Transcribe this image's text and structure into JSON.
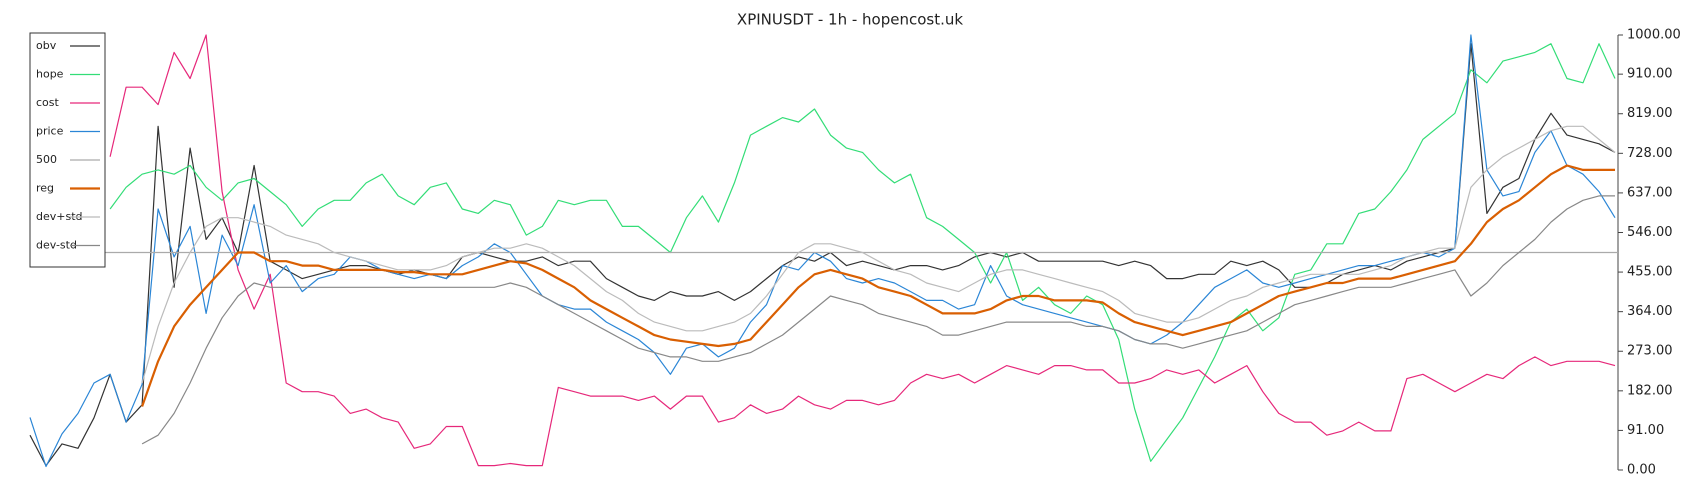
{
  "chart_data": {
    "type": "line",
    "title": "XPINUSDT - 1h - hopencost.uk",
    "ylim": [
      0,
      1000
    ],
    "yticks": [
      {
        "value": 0,
        "label": "0.00"
      },
      {
        "value": 91,
        "label": "91.00"
      },
      {
        "value": 182,
        "label": "182.00"
      },
      {
        "value": 273,
        "label": "273.00"
      },
      {
        "value": 364,
        "label": "364.00"
      },
      {
        "value": 455,
        "label": "455.00"
      },
      {
        "value": 546,
        "label": "546.00"
      },
      {
        "value": 637,
        "label": "637.00"
      },
      {
        "value": 728,
        "label": "728.00"
      },
      {
        "value": 819,
        "label": "819.00"
      },
      {
        "value": 910,
        "label": "910.00"
      },
      {
        "value": 1000,
        "label": "1000.00"
      }
    ],
    "grid": false,
    "legend": "upper left",
    "series": [
      {
        "name": "obv",
        "color": "#333333",
        "values": [
          80,
          10,
          60,
          50,
          120,
          220,
          110,
          150,
          790,
          420,
          740,
          530,
          580,
          500,
          700,
          480,
          460,
          440,
          450,
          460,
          470,
          470,
          460,
          450,
          460,
          450,
          440,
          490,
          500,
          490,
          480,
          480,
          490,
          470,
          480,
          480,
          440,
          420,
          400,
          390,
          410,
          400,
          400,
          410,
          390,
          410,
          440,
          470,
          490,
          480,
          500,
          470,
          480,
          470,
          460,
          470,
          470,
          460,
          470,
          490,
          500,
          490,
          500,
          480,
          480,
          480,
          480,
          480,
          470,
          480,
          470,
          440,
          440,
          450,
          450,
          480,
          470,
          480,
          460,
          420,
          420,
          430,
          450,
          460,
          470,
          460,
          480,
          490,
          500,
          510,
          980,
          590,
          650,
          670,
          760,
          820,
          770,
          760,
          750,
          730
        ]
      },
      {
        "name": "hope",
        "color": "#33dd77",
        "values": [
          null,
          null,
          null,
          null,
          null,
          600,
          650,
          680,
          690,
          680,
          700,
          650,
          620,
          660,
          670,
          640,
          610,
          560,
          600,
          620,
          620,
          660,
          680,
          630,
          610,
          650,
          660,
          600,
          590,
          620,
          610,
          540,
          560,
          620,
          610,
          620,
          620,
          560,
          560,
          530,
          500,
          580,
          630,
          570,
          660,
          770,
          790,
          810,
          800,
          830,
          770,
          740,
          730,
          690,
          660,
          680,
          580,
          560,
          530,
          500,
          430,
          500,
          390,
          420,
          380,
          360,
          400,
          380,
          300,
          140,
          20,
          70,
          120,
          190,
          260,
          340,
          370,
          320,
          350,
          450,
          460,
          520,
          520,
          590,
          600,
          640,
          690,
          760,
          790,
          820,
          920,
          890,
          940,
          950,
          960,
          980,
          900,
          890,
          980,
          900
        ]
      },
      {
        "name": "cost",
        "color": "#e6287a",
        "values": [
          null,
          null,
          null,
          null,
          null,
          720,
          880,
          880,
          840,
          960,
          900,
          1000,
          640,
          460,
          370,
          450,
          200,
          180,
          180,
          170,
          130,
          140,
          120,
          110,
          50,
          60,
          100,
          100,
          10,
          10,
          15,
          10,
          10,
          190,
          180,
          170,
          170,
          170,
          160,
          170,
          140,
          170,
          170,
          110,
          120,
          150,
          130,
          140,
          170,
          150,
          140,
          160,
          160,
          150,
          160,
          200,
          220,
          210,
          220,
          200,
          220,
          240,
          230,
          220,
          240,
          240,
          230,
          230,
          200,
          200,
          210,
          230,
          220,
          230,
          200,
          220,
          240,
          180,
          130,
          110,
          110,
          80,
          90,
          110,
          90,
          90,
          210,
          220,
          200,
          180,
          200,
          220,
          210,
          240,
          260,
          240,
          250,
          250,
          250,
          240
        ]
      },
      {
        "name": "price",
        "color": "#2b86d6",
        "values": [
          121,
          8,
          83,
          130,
          200,
          220,
          110,
          197,
          600,
          490,
          560,
          360,
          540,
          470,
          610,
          430,
          470,
          410,
          440,
          450,
          490,
          480,
          460,
          450,
          440,
          450,
          440,
          470,
          490,
          520,
          500,
          450,
          400,
          380,
          370,
          370,
          340,
          320,
          300,
          270,
          220,
          280,
          290,
          260,
          280,
          340,
          380,
          470,
          460,
          500,
          480,
          440,
          430,
          440,
          430,
          410,
          390,
          390,
          370,
          380,
          470,
          400,
          380,
          370,
          360,
          350,
          340,
          330,
          320,
          300,
          290,
          310,
          340,
          380,
          420,
          440,
          460,
          430,
          420,
          430,
          440,
          450,
          460,
          470,
          470,
          480,
          490,
          500,
          490,
          510,
          1000,
          690,
          630,
          640,
          730,
          780,
          700,
          680,
          640,
          580
        ]
      },
      {
        "name": "500",
        "color": "#aaaaaa",
        "style": "hline",
        "values": [
          500
        ]
      },
      {
        "name": "reg",
        "color": "#d95f02",
        "values": [
          null,
          null,
          null,
          null,
          null,
          null,
          null,
          146,
          250,
          330,
          380,
          420,
          460,
          500,
          500,
          480,
          480,
          470,
          470,
          460,
          460,
          460,
          460,
          455,
          455,
          450,
          450,
          450,
          460,
          470,
          480,
          475,
          460,
          440,
          420,
          390,
          370,
          350,
          330,
          310,
          300,
          295,
          290,
          285,
          290,
          300,
          340,
          380,
          420,
          450,
          460,
          450,
          440,
          420,
          410,
          400,
          380,
          360,
          360,
          360,
          370,
          390,
          400,
          400,
          390,
          390,
          390,
          385,
          360,
          340,
          330,
          320,
          310,
          320,
          330,
          340,
          360,
          380,
          400,
          410,
          420,
          430,
          430,
          440,
          440,
          440,
          450,
          460,
          470,
          480,
          520,
          570,
          600,
          620,
          650,
          680,
          700,
          690,
          690,
          690
        ]
      },
      {
        "name": "dev+std",
        "color": "#bbbbbb",
        "values": [
          null,
          null,
          null,
          null,
          null,
          null,
          null,
          200,
          330,
          430,
          500,
          560,
          580,
          580,
          570,
          560,
          540,
          530,
          520,
          500,
          490,
          480,
          470,
          460,
          460,
          460,
          470,
          490,
          500,
          510,
          510,
          520,
          510,
          490,
          470,
          440,
          410,
          390,
          360,
          340,
          330,
          320,
          320,
          330,
          340,
          360,
          400,
          450,
          500,
          520,
          520,
          510,
          500,
          480,
          460,
          450,
          430,
          420,
          410,
          430,
          450,
          460,
          460,
          450,
          440,
          430,
          420,
          410,
          390,
          360,
          350,
          340,
          340,
          350,
          370,
          390,
          400,
          420,
          430,
          440,
          450,
          450,
          450,
          450,
          460,
          470,
          490,
          500,
          510,
          510,
          650,
          690,
          720,
          740,
          760,
          780,
          790,
          790,
          760,
          730
        ]
      },
      {
        "name": "dev-std",
        "color": "#888888",
        "values": [
          null,
          null,
          null,
          null,
          null,
          null,
          null,
          60,
          80,
          130,
          200,
          280,
          350,
          400,
          430,
          420,
          420,
          420,
          420,
          420,
          420,
          420,
          420,
          420,
          420,
          420,
          420,
          420,
          420,
          420,
          430,
          420,
          400,
          380,
          360,
          340,
          320,
          300,
          280,
          270,
          260,
          260,
          250,
          250,
          260,
          270,
          290,
          310,
          340,
          370,
          400,
          390,
          380,
          360,
          350,
          340,
          330,
          310,
          310,
          320,
          330,
          340,
          340,
          340,
          340,
          340,
          330,
          330,
          320,
          300,
          290,
          290,
          280,
          290,
          300,
          310,
          320,
          340,
          360,
          380,
          390,
          400,
          410,
          420,
          420,
          420,
          430,
          440,
          450,
          460,
          400,
          430,
          470,
          500,
          530,
          570,
          600,
          620,
          630,
          630
        ]
      }
    ]
  }
}
